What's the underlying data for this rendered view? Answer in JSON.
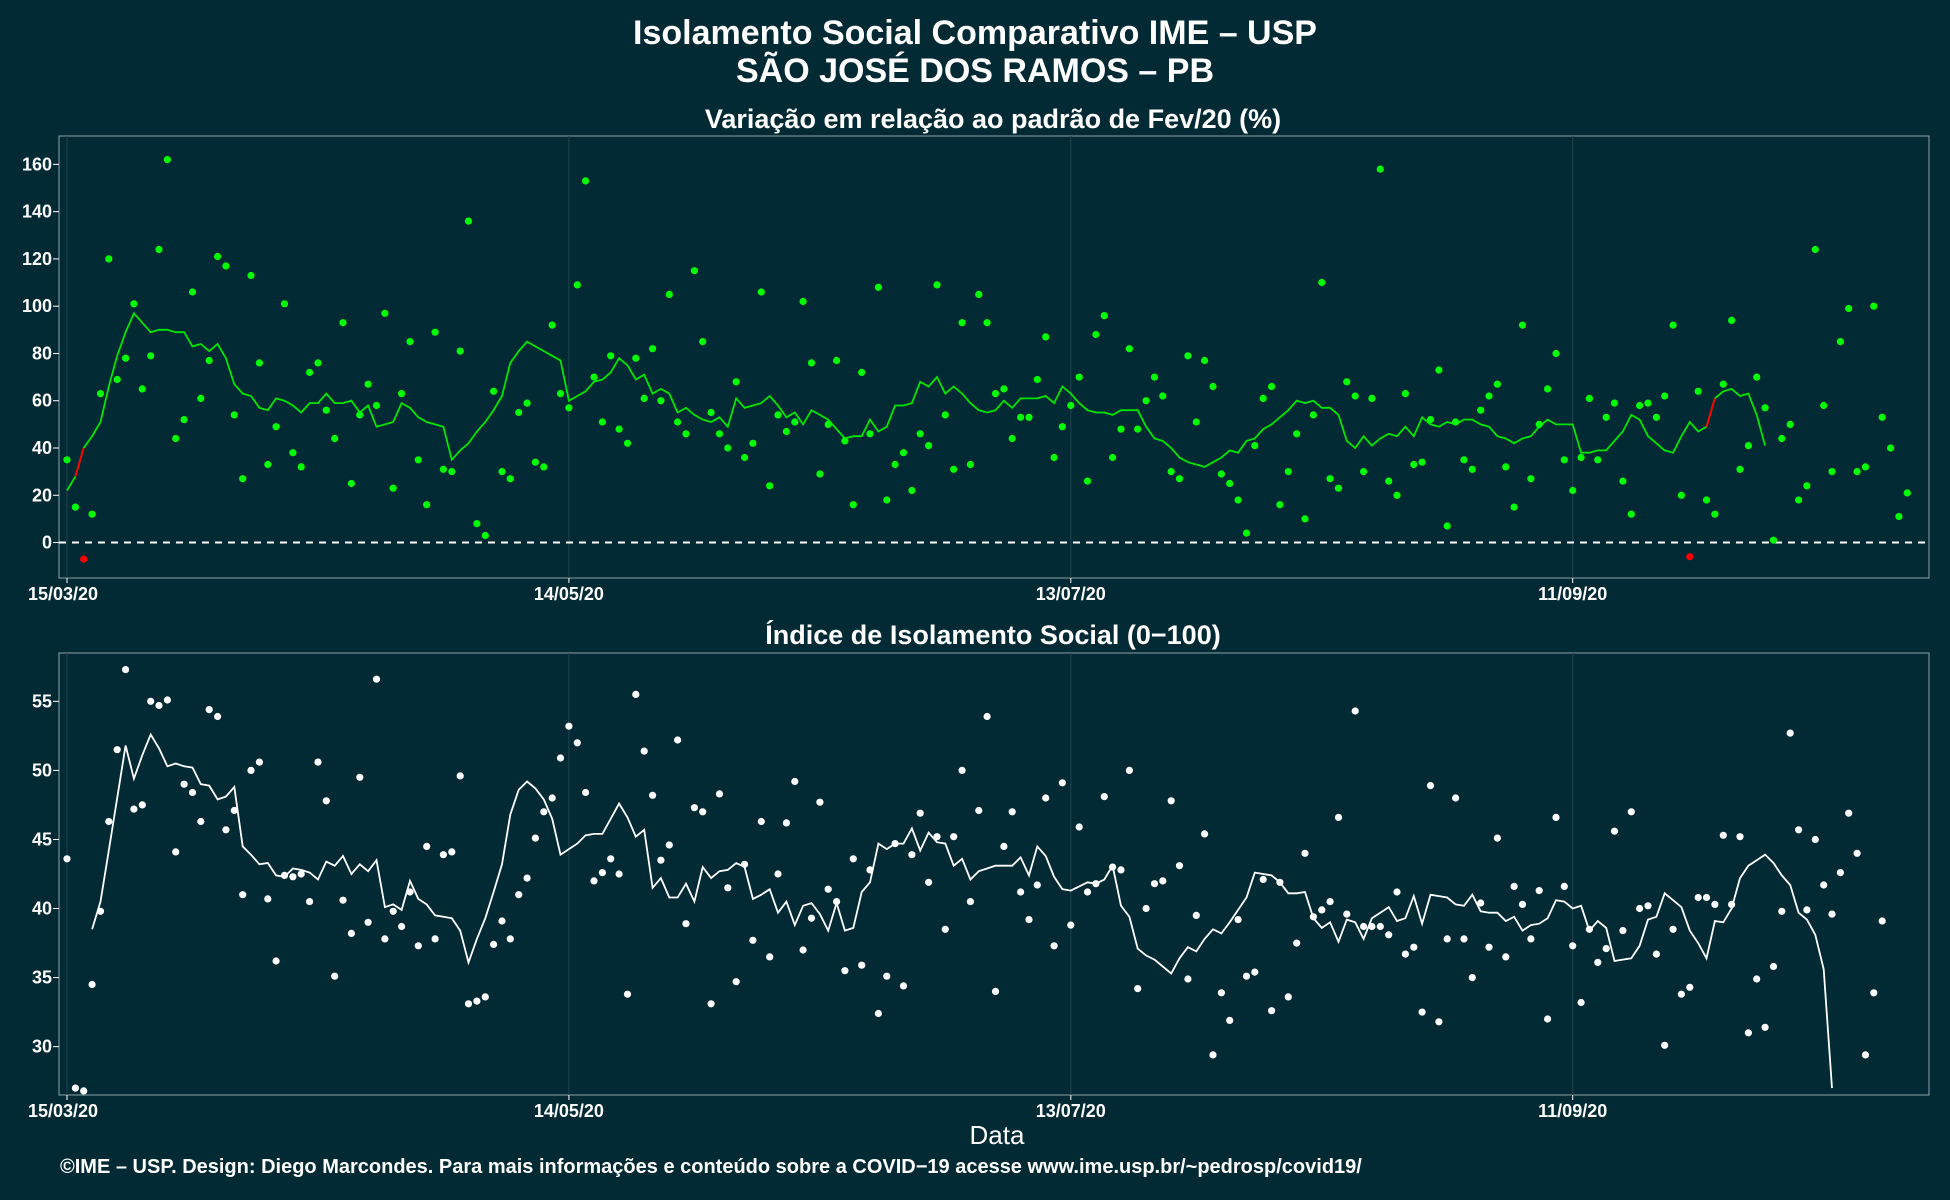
{
  "title_line1": "Isolamento Social Comparativo IME – USP",
  "title_line2": "SÃO JOSÉ DOS RAMOS – PB",
  "x_axis_title": "Data",
  "footer": "©IME – USP. Design: Diego Marcondes. Para mais informações e conteúdo sobre a COVID−19 acesse www.ime.usp.br/~pedrosp/covid19/",
  "colors": {
    "background": "#022a35",
    "points_top": "#00ff00",
    "line_top": "#00e600",
    "negative": "#ff0000",
    "points_bottom": "#ffffff",
    "zero_line": "#ffffff"
  },
  "chart_data": [
    {
      "type": "scatter",
      "title": "Variação em relação ao padrão de Fev/20 (%)",
      "x_start": "15/03/20",
      "x_tick_labels": [
        "15/03/20",
        "14/05/20",
        "13/07/20",
        "11/09/20"
      ],
      "x_tick_day_index": [
        0,
        60,
        120,
        180
      ],
      "y_ticks": [
        0,
        20,
        40,
        60,
        80,
        100,
        120,
        140,
        160
      ],
      "ylim": [
        -15,
        172
      ],
      "reference_line": 0,
      "series": [
        {
          "kind": "points",
          "values": [
            35,
            15,
            -7,
            12,
            63,
            120,
            69,
            78,
            101,
            65,
            79,
            124,
            162,
            44,
            52,
            106,
            61,
            77,
            121,
            117,
            54,
            27,
            113,
            76,
            33,
            49,
            101,
            38,
            32,
            72,
            76,
            56,
            44,
            93,
            25,
            54,
            67,
            58,
            97,
            23,
            63,
            85,
            35,
            16,
            89,
            31,
            30,
            81,
            136,
            8,
            3,
            64,
            30,
            27,
            55,
            59,
            34,
            32,
            92,
            63,
            57,
            109,
            153,
            70,
            51,
            79,
            48,
            42,
            78,
            61,
            82,
            60,
            105,
            51,
            46,
            115,
            85,
            55,
            46,
            40,
            68,
            36,
            42,
            106,
            24,
            54,
            47,
            51,
            102,
            76,
            29,
            50,
            77,
            43,
            16,
            72,
            46,
            108,
            18,
            33,
            38,
            22,
            46,
            41,
            109,
            54,
            31,
            93,
            33,
            105,
            93,
            63,
            65,
            44,
            53,
            53,
            69,
            87,
            36,
            49,
            58,
            70,
            26,
            88,
            96,
            36,
            48,
            82,
            48,
            60,
            70,
            62,
            30,
            27,
            79,
            51,
            77,
            66,
            29,
            25,
            18,
            4,
            41,
            61,
            66,
            16,
            30,
            46,
            10,
            54,
            110,
            27,
            23,
            68,
            62,
            30,
            61,
            158,
            26,
            20,
            63,
            33,
            34,
            52,
            73,
            7,
            51,
            35,
            31,
            56,
            62,
            67,
            32,
            15,
            92,
            27,
            50,
            65,
            80,
            35,
            22,
            36,
            61,
            35,
            53,
            59,
            26,
            12,
            58,
            59,
            53,
            62,
            92,
            20,
            -6,
            64,
            18,
            12,
            67,
            94,
            31,
            41,
            70,
            57,
            1,
            44,
            50,
            18,
            24,
            124,
            58,
            30,
            85,
            99,
            30,
            32,
            100,
            53,
            40,
            11,
            21
          ]
        },
        {
          "kind": "moving_average",
          "start_index": 0,
          "values": [
            22,
            28,
            40,
            45,
            51,
            66,
            79,
            89,
            97,
            93,
            89,
            90,
            90,
            89,
            89,
            83,
            84,
            81,
            84,
            78,
            67,
            63,
            62,
            57,
            56,
            61,
            60,
            58,
            55,
            59,
            59,
            63,
            59,
            59,
            60,
            55,
            58,
            49,
            50,
            51,
            59,
            57,
            53,
            51,
            50,
            49,
            35,
            39,
            42,
            47,
            51,
            56,
            62,
            76,
            81,
            85,
            83,
            81,
            79,
            77,
            60,
            62,
            64,
            68,
            69,
            72,
            78,
            75,
            69,
            71,
            63,
            65,
            63,
            55,
            57,
            54,
            52,
            51,
            53,
            49,
            61,
            57,
            58,
            59,
            62,
            58,
            53,
            55,
            50,
            56,
            54,
            52,
            48,
            44,
            45,
            45,
            52,
            47,
            49,
            58,
            58,
            59,
            68,
            66,
            70,
            63,
            66,
            63,
            59,
            56,
            55,
            56,
            60,
            57,
            61,
            61,
            61,
            62,
            59,
            66,
            63,
            59,
            56,
            55,
            55,
            54,
            56,
            56,
            56,
            49,
            44,
            43,
            40,
            36,
            34,
            33,
            32,
            34,
            36,
            39,
            38,
            43,
            44,
            48,
            50,
            53,
            56,
            60,
            59,
            60,
            57,
            57,
            54,
            43,
            40,
            45,
            41,
            44,
            46,
            45,
            49,
            45,
            53,
            50,
            49,
            51,
            50,
            52,
            52,
            50,
            49,
            45,
            44,
            42,
            44,
            45,
            49,
            52,
            50,
            50,
            50,
            38,
            38,
            39,
            39,
            43,
            47,
            54,
            52,
            45,
            42,
            39,
            38,
            45,
            51,
            47,
            49,
            61,
            64,
            65,
            62,
            63,
            54,
            41
          ]
        },
        {
          "kind": "negative_segments",
          "segments": [
            [
              1,
              2
            ],
            [
              196,
              197
            ]
          ]
        }
      ]
    },
    {
      "type": "scatter",
      "title": "Índice de Isolamento Social (0−100)",
      "x_start": "15/03/20",
      "x_tick_labels": [
        "15/03/20",
        "14/05/20",
        "13/07/20",
        "11/09/20"
      ],
      "x_tick_day_index": [
        0,
        60,
        120,
        180
      ],
      "y_ticks": [
        30,
        35,
        40,
        45,
        50,
        55
      ],
      "ylim": [
        26.5,
        58.5
      ],
      "series": [
        {
          "kind": "points",
          "values": [
            43.6,
            27.0,
            26.8,
            34.5,
            39.8,
            46.3,
            51.5,
            57.3,
            47.2,
            47.5,
            55.0,
            54.7,
            55.1,
            44.1,
            49.0,
            48.4,
            46.3,
            54.4,
            53.9,
            45.7,
            47.1,
            41.0,
            50.0,
            50.6,
            40.7,
            36.2,
            42.4,
            42.3,
            42.5,
            40.5,
            50.6,
            47.8,
            35.1,
            40.6,
            38.2,
            49.5,
            39.0,
            56.6,
            37.8,
            39.8,
            38.7,
            41.2,
            37.3,
            44.5,
            37.8,
            43.9,
            44.1,
            49.6,
            33.1,
            33.3,
            33.6,
            37.4,
            39.1,
            37.8,
            41.0,
            42.2,
            45.1,
            47.0,
            48.0,
            50.9,
            53.2,
            52.0,
            48.4,
            42.0,
            42.6,
            43.6,
            42.5,
            33.8,
            55.5,
            51.4,
            48.2,
            43.5,
            44.6,
            52.2,
            38.9,
            47.3,
            47.0,
            33.1,
            48.3,
            41.5,
            34.7,
            43.2,
            37.7,
            46.3,
            36.5,
            42.5,
            46.2,
            49.2,
            37.0,
            39.3,
            47.7,
            41.4,
            40.5,
            35.5,
            43.6,
            35.9,
            42.8,
            32.4,
            35.1,
            44.7,
            34.4,
            43.9,
            46.9,
            41.9,
            45.2,
            38.5,
            45.2,
            50.0,
            40.5,
            47.1,
            53.9,
            34.0,
            44.5,
            47.0,
            41.2,
            39.2,
            41.7,
            48.0,
            37.3,
            49.1,
            38.8,
            45.9,
            41.2,
            41.8,
            48.1,
            43.0,
            42.8,
            50.0,
            34.2,
            40.0,
            41.8,
            42.0,
            47.8,
            43.1,
            34.9,
            39.5,
            45.4,
            29.4,
            33.9,
            31.9,
            39.2,
            35.1,
            35.4,
            42.1,
            32.6,
            41.9,
            33.6,
            37.5,
            44.0,
            39.4,
            39.9,
            40.5,
            46.6,
            39.6,
            54.3,
            38.7,
            38.7,
            38.7,
            38.1,
            41.2,
            36.7,
            37.2,
            32.5,
            48.9,
            31.8,
            37.8,
            48.0,
            37.8,
            35.0,
            40.4,
            37.2,
            45.1,
            36.5,
            41.6,
            40.3,
            37.8,
            41.3,
            32.0,
            46.6,
            41.6,
            37.3,
            33.2,
            38.5,
            36.1,
            37.1,
            45.6,
            38.4,
            47.0,
            40.0,
            40.2,
            36.7,
            30.1,
            38.5,
            33.8,
            34.3,
            40.8,
            40.8,
            40.3,
            45.3,
            40.3,
            45.2,
            31.0,
            34.9,
            31.4,
            35.8,
            39.8,
            52.7,
            45.7,
            39.9,
            45.0,
            41.7,
            39.6,
            42.6,
            46.9,
            44.0,
            29.4,
            33.9,
            39.1
          ]
        },
        {
          "kind": "moving_average",
          "start_index": 3,
          "values": [
            38.5,
            40.5,
            44.2,
            48.0,
            51.8,
            49.4,
            51.1,
            52.6,
            51.6,
            50.3,
            50.5,
            50.3,
            50.2,
            49.0,
            48.9,
            47.9,
            48.1,
            48.8,
            44.5,
            43.9,
            43.2,
            43.3,
            42.4,
            42.3,
            42.9,
            42.8,
            42.6,
            42.1,
            43.4,
            43.1,
            43.8,
            42.5,
            43.2,
            42.7,
            43.5,
            40.1,
            40.3,
            39.9,
            42.0,
            40.7,
            40.3,
            39.5,
            39.4,
            39.3,
            38.4,
            36.1,
            37.8,
            39.3,
            41.2,
            43.2,
            46.8,
            48.6,
            49.2,
            48.7,
            47.9,
            46.5,
            43.9,
            44.3,
            44.7,
            45.3,
            45.4,
            45.4,
            46.5,
            47.6,
            46.6,
            45.2,
            45.7,
            41.5,
            42.2,
            40.8,
            40.8,
            41.8,
            40.5,
            43.0,
            42.2,
            42.7,
            42.8,
            43.3,
            43.0,
            40.7,
            41.0,
            41.4,
            39.7,
            40.5,
            38.8,
            40.2,
            40.4,
            39.6,
            38.4,
            40.4,
            38.4,
            38.6,
            41.2,
            41.9,
            44.7,
            44.3,
            44.7,
            44.7,
            45.8,
            44.2,
            45.5,
            44.8,
            44.7,
            43.1,
            43.6,
            42.1,
            42.7,
            42.9,
            43.1,
            43.1,
            43.1,
            43.7,
            42.4,
            44.5,
            43.8,
            42.3,
            41.4,
            41.3,
            41.6,
            41.9,
            41.8,
            42.1,
            43.1,
            40.2,
            39.4,
            37.1,
            36.6,
            36.3,
            35.8,
            35.3,
            36.4,
            37.2,
            36.9,
            37.8,
            38.5,
            38.2,
            39.0,
            39.9,
            40.8,
            42.6,
            42.5,
            42.4,
            41.9,
            41.1,
            41.1,
            41.2,
            39.3,
            38.6,
            39.0,
            37.6,
            39.2,
            39.0,
            37.8,
            39.3,
            39.7,
            40.1,
            39.1,
            39.3,
            40.9,
            38.9,
            41.0,
            40.9,
            40.8,
            40.3,
            40.2,
            41.0,
            39.8,
            39.7,
            39.7,
            39.1,
            39.4,
            38.4,
            38.8,
            38.9,
            39.3,
            40.6,
            40.5,
            40.0,
            40.2,
            38.4,
            39.1,
            38.6,
            36.2,
            36.3,
            36.4,
            37.3,
            39.2,
            39.4,
            41.1,
            40.6,
            40.1,
            38.4,
            37.5,
            36.4,
            39.1,
            39.0,
            40.0,
            42.2,
            43.1,
            43.5,
            43.9,
            43.3,
            42.4,
            41.7,
            39.7,
            39.2,
            38.1,
            35.6,
            27.0
          ]
        }
      ]
    }
  ]
}
